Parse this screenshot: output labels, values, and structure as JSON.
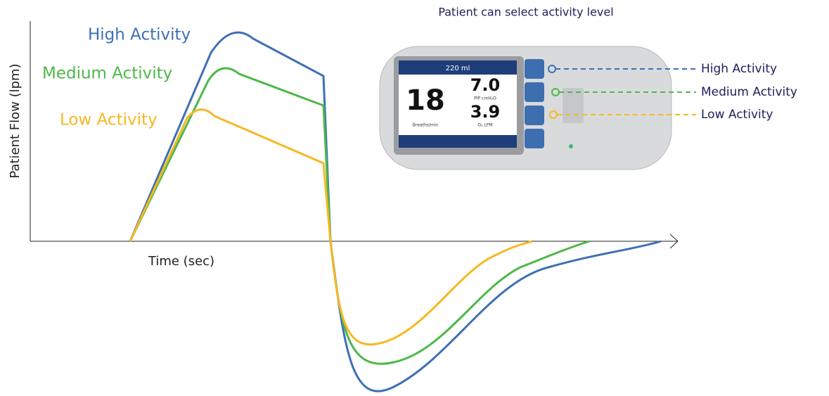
{
  "axes": {
    "y_label": "Patient Flow (lpm)",
    "x_label": "Time (sec)"
  },
  "curves": [
    {
      "label": "High Activity"
    },
    {
      "label": "Medium Activity"
    },
    {
      "label": "Low Activity"
    }
  ],
  "device": {
    "caption": "Patient can select activity level",
    "volume": "220 ml",
    "rate": "18",
    "rate_unit": "Breaths/min",
    "pip": "7.0",
    "pip_unit": "PIP cmH₂O",
    "o2": "3.9",
    "o2_unit": "O₂ LPM"
  },
  "callouts": [
    {
      "label": "High Activity"
    },
    {
      "label": "Medium Activity"
    },
    {
      "label": "Low Activity"
    }
  ]
}
